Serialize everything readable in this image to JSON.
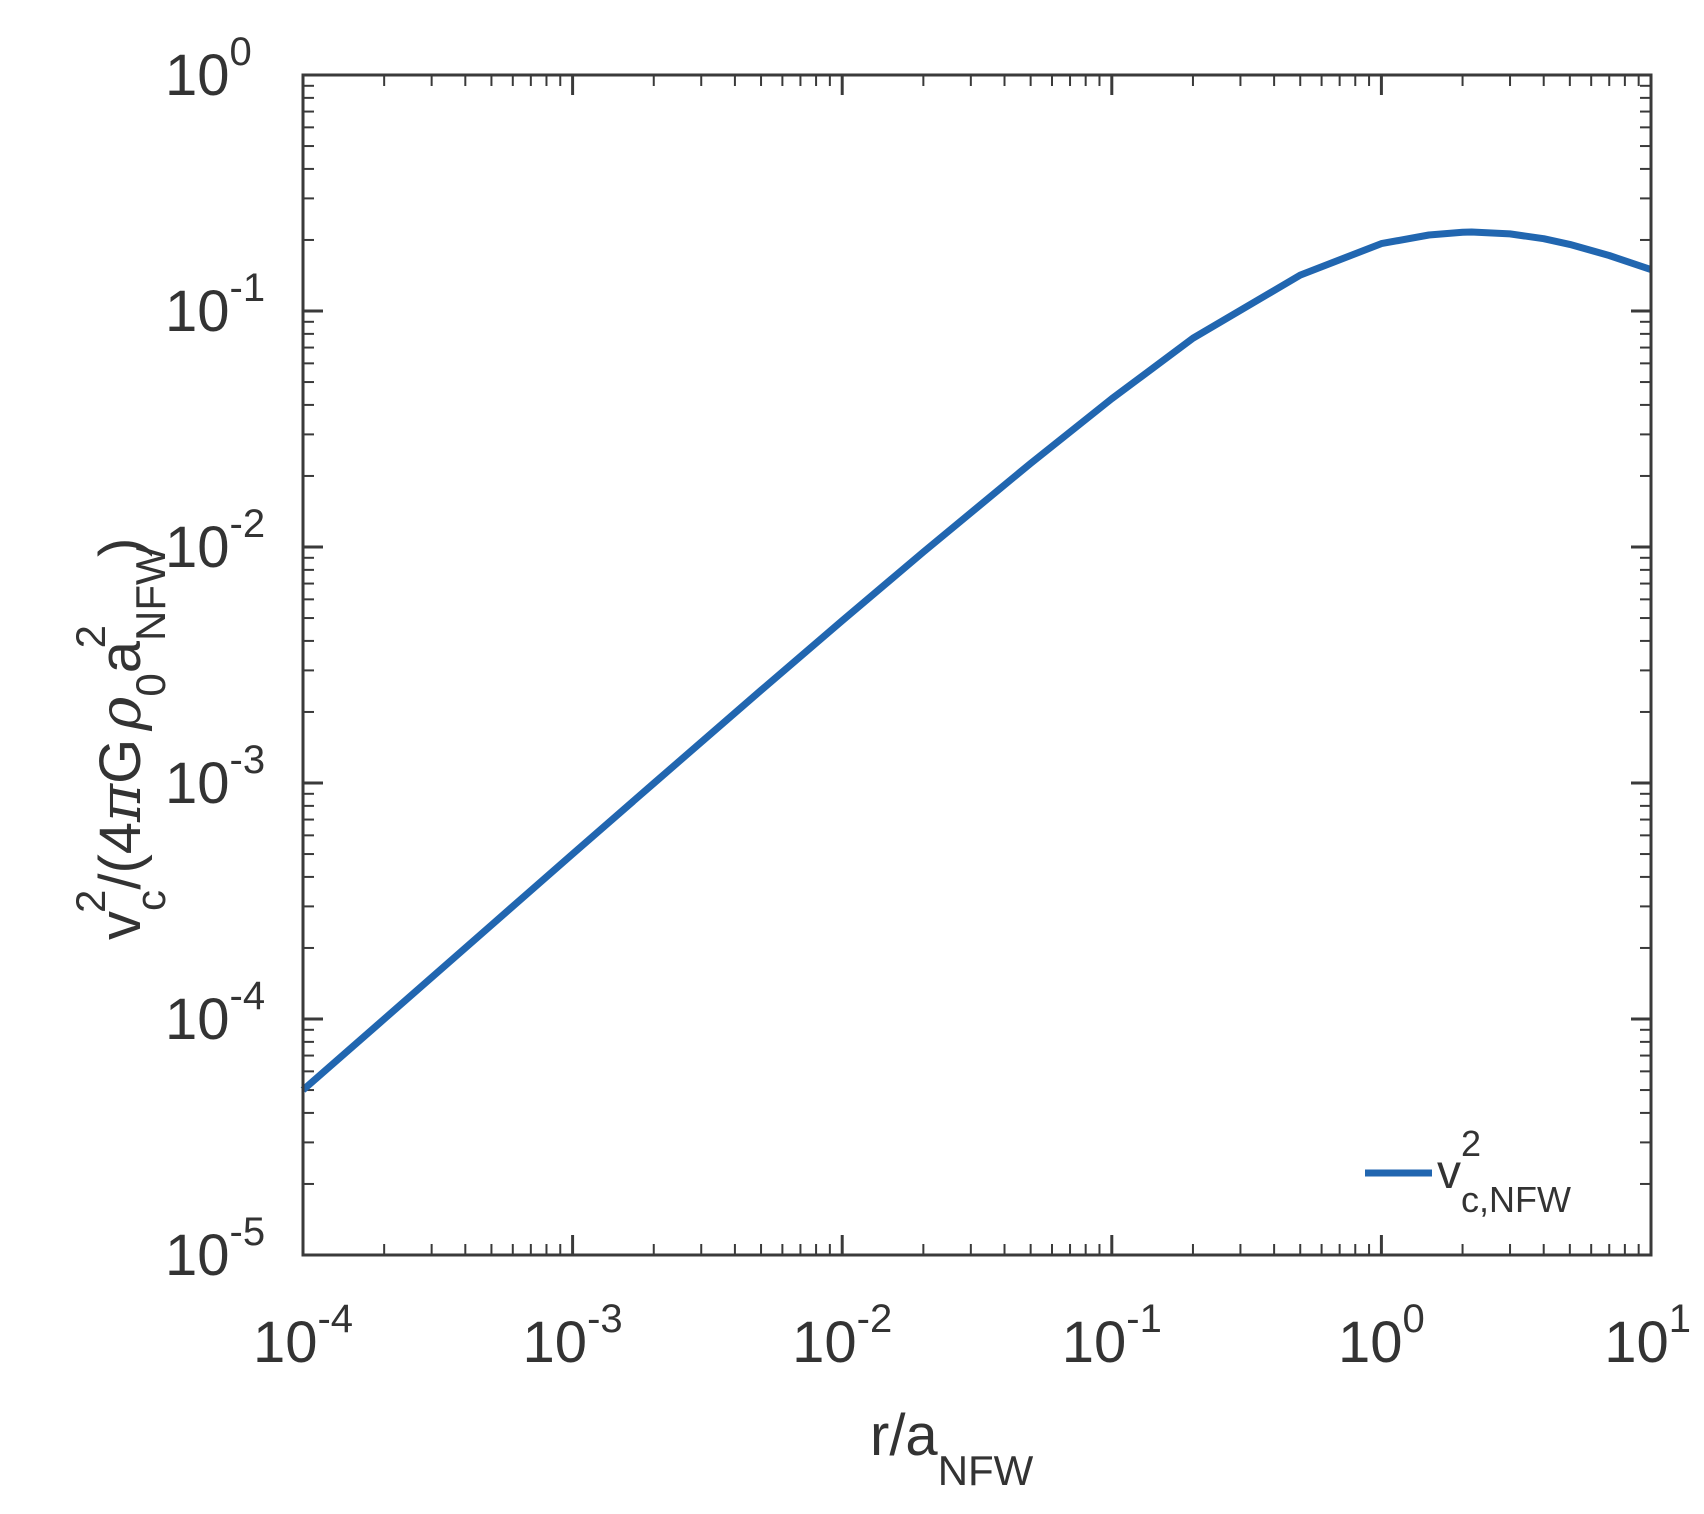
{
  "chart_data": {
    "type": "line",
    "xscale": "log",
    "yscale": "log",
    "xlim": [
      0.0001,
      10
    ],
    "ylim": [
      1e-05,
      1
    ],
    "grid": false,
    "legend_position": "bottom-right",
    "xlabel": {
      "main": "r/a",
      "sub": "NFW"
    },
    "ylabel": {
      "v": "v",
      "v_sub": "c",
      "v_sup": "2",
      "mid": "/(4",
      "pi": "π",
      "G": "G",
      "rho": "ρ",
      "rho_sub": "0",
      "a": "a",
      "a_sup": "2",
      "a_sub": "NFW",
      "close": ")"
    },
    "x_ticks": [
      {
        "value": 0.0001,
        "base": "10",
        "exp": "-4"
      },
      {
        "value": 0.001,
        "base": "10",
        "exp": "-3"
      },
      {
        "value": 0.01,
        "base": "10",
        "exp": "-2"
      },
      {
        "value": 0.1,
        "base": "10",
        "exp": "-1"
      },
      {
        "value": 1,
        "base": "10",
        "exp": "0"
      },
      {
        "value": 10,
        "base": "10",
        "exp": "1"
      }
    ],
    "y_ticks": [
      {
        "value": 1e-05,
        "base": "10",
        "exp": "-5"
      },
      {
        "value": 0.0001,
        "base": "10",
        "exp": "-4"
      },
      {
        "value": 0.001,
        "base": "10",
        "exp": "-3"
      },
      {
        "value": 0.01,
        "base": "10",
        "exp": "-2"
      },
      {
        "value": 0.1,
        "base": "10",
        "exp": "-1"
      },
      {
        "value": 1,
        "base": "10",
        "exp": "0"
      }
    ],
    "series": [
      {
        "name": {
          "main": "v",
          "sup": "2",
          "sub": "c,NFW"
        },
        "color": "#2166b0",
        "x": [
          0.0001,
          0.0002,
          0.0005,
          0.001,
          0.002,
          0.005,
          0.01,
          0.02,
          0.05,
          0.1,
          0.2,
          0.5,
          1,
          1.5,
          2,
          2.16,
          3,
          4,
          5,
          7,
          10
        ],
        "y": [
          5e-05,
          0.0001,
          0.00025,
          0.0005,
          0.000997,
          0.00247,
          0.00487,
          0.00952,
          0.0226,
          0.0425,
          0.0767,
          0.142,
          0.193,
          0.21,
          0.2157,
          0.2162,
          0.2121,
          0.2024,
          0.1916,
          0.1719,
          0.1498
        ]
      }
    ]
  }
}
